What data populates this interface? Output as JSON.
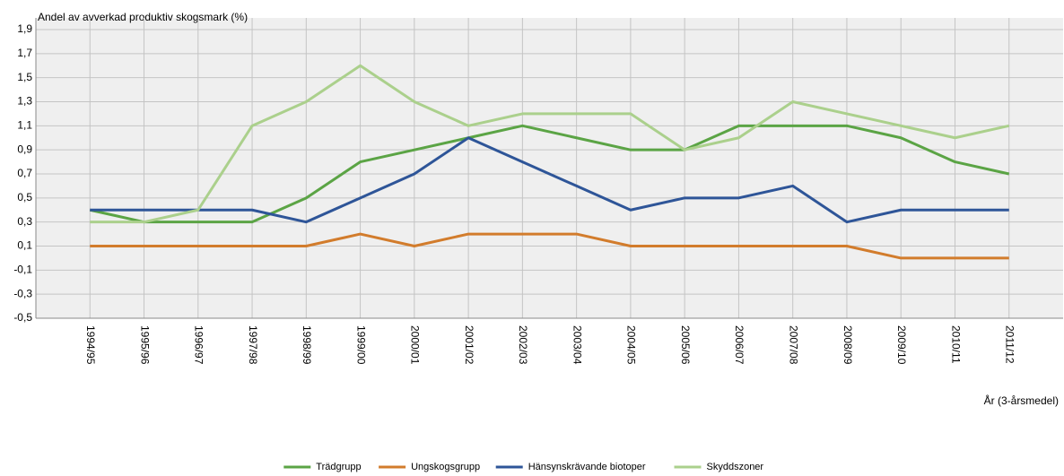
{
  "chart_data": {
    "type": "line",
    "title": "Andel av avverkad produktiv skogsmark (%)",
    "x_label": "År (3-årsmedel)",
    "categories": [
      "1994/95",
      "1995/96",
      "1996/97",
      "1997/98",
      "1998/99",
      "1999/00",
      "2000/01",
      "2001/02",
      "2002/03",
      "2003/04",
      "2004/05",
      "2005/06",
      "2006/07",
      "2007/08",
      "2008/09",
      "2009/10",
      "2010/11",
      "2011/12"
    ],
    "series": [
      {
        "name": "Trädgrupp",
        "color": "#5ba445",
        "values": [
          0.4,
          0.3,
          0.3,
          0.3,
          0.5,
          0.8,
          0.9,
          1.0,
          1.1,
          1.0,
          0.9,
          0.9,
          1.1,
          1.1,
          1.1,
          1.0,
          0.8,
          0.7
        ]
      },
      {
        "name": "Ungskogsgrupp",
        "color": "#d27c2c",
        "values": [
          0.1,
          0.1,
          0.1,
          0.1,
          0.1,
          0.2,
          0.1,
          0.2,
          0.2,
          0.2,
          0.1,
          0.1,
          0.1,
          0.1,
          0.1,
          0.0,
          0.0,
          0.0
        ]
      },
      {
        "name": "Hänsynskrävande biotoper",
        "color": "#2e5598",
        "values": [
          0.4,
          0.4,
          0.4,
          0.4,
          0.3,
          0.5,
          0.7,
          1.0,
          0.8,
          0.6,
          0.4,
          0.5,
          0.5,
          0.6,
          0.3,
          0.4,
          0.4,
          0.4
        ]
      },
      {
        "name": "Skyddszoner",
        "color": "#abd08c",
        "values": [
          0.3,
          0.3,
          0.4,
          1.1,
          1.3,
          1.6,
          1.3,
          1.1,
          1.2,
          1.2,
          1.2,
          0.9,
          1.0,
          1.3,
          1.2,
          1.1,
          1.0,
          1.1
        ]
      }
    ],
    "ylim": [
      -0.5,
      1.9
    ],
    "yticks": [
      {
        "value": -0.5,
        "label": "-0,5"
      },
      {
        "value": -0.3,
        "label": "-0,3"
      },
      {
        "value": -0.1,
        "label": "-0,1"
      },
      {
        "value": 0.1,
        "label": "0,1"
      },
      {
        "value": 0.3,
        "label": "0,3"
      },
      {
        "value": 0.5,
        "label": "0,5"
      },
      {
        "value": 0.7,
        "label": "0,7"
      },
      {
        "value": 0.9,
        "label": "0,9"
      },
      {
        "value": 1.1,
        "label": "1,1"
      },
      {
        "value": 1.3,
        "label": "1,3"
      },
      {
        "value": 1.5,
        "label": "1,5"
      },
      {
        "value": 1.7,
        "label": "1,7"
      },
      {
        "value": 1.9,
        "label": "1,9"
      }
    ],
    "grid": true
  }
}
